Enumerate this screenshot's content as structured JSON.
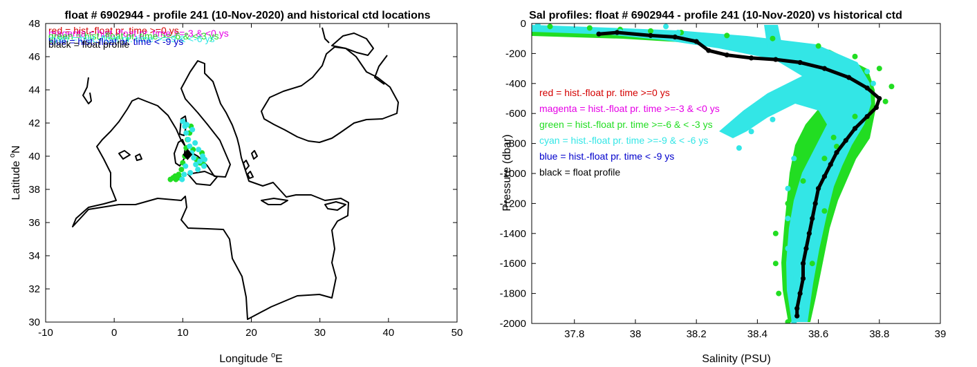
{
  "chart_data": [
    {
      "type": "scatter",
      "title": "float # 6902944 - profile 241 (10-Nov-2020) and historical ctd locations",
      "xlabel_main": "Longitude ",
      "xlabel_sup": "o",
      "xlabel_tail": "E",
      "ylabel_main": "Latitude ",
      "ylabel_sup": "o",
      "ylabel_tail": "N",
      "xlim": [
        -10,
        50
      ],
      "ylim": [
        30,
        48
      ],
      "xticks": [
        -10,
        0,
        10,
        20,
        30,
        40,
        50
      ],
      "yticks": [
        30,
        32,
        34,
        36,
        38,
        40,
        42,
        44,
        46,
        48
      ],
      "xtick_labels": [
        "-10",
        "0",
        "10",
        "20",
        "30",
        "40",
        "50"
      ],
      "ytick_labels": [
        "30",
        "32",
        "34",
        "36",
        "38",
        "40",
        "42",
        "44",
        "46",
        "48"
      ],
      "legend_position": "top-left",
      "legend": [
        {
          "text": "red = hist.-float pr. time >=0 ys",
          "color": "#d40000"
        },
        {
          "text": "magenta = hist.-float pr. time >=-3 & <0 ys",
          "color": "#e600e6"
        },
        {
          "text": "green = hist.-float pr. time >=-6 & <-3 ys",
          "color": "#22dd22"
        },
        {
          "text": "cyan = hist.-float pr. time >=-9 & <-6 ys",
          "color": "#33e6e6"
        },
        {
          "text": "blue = hist.-float pr. time < -9 ys",
          "color": "#0000cc"
        },
        {
          "text": "black = float profile",
          "color": "#000000"
        }
      ],
      "series": [
        {
          "name": "green",
          "color": "#22dd22",
          "points": [
            [
              8.2,
              38.6
            ],
            [
              8.6,
              38.7
            ],
            [
              9.0,
              38.6
            ],
            [
              9.4,
              38.9
            ],
            [
              9.8,
              39.2
            ],
            [
              10.0,
              39.6
            ],
            [
              10.3,
              40.0
            ],
            [
              10.5,
              40.5
            ],
            [
              10.7,
              41.0
            ],
            [
              11.0,
              41.4
            ],
            [
              11.2,
              41.8
            ],
            [
              11.5,
              40.4
            ],
            [
              12.0,
              39.8
            ],
            [
              12.5,
              39.6
            ],
            [
              12.8,
              40.2
            ],
            [
              13.0,
              39.5
            ],
            [
              9.5,
              38.7
            ],
            [
              8.9,
              38.8
            ]
          ]
        },
        {
          "name": "cyan",
          "color": "#33e6e6",
          "points": [
            [
              10.0,
              42.1
            ],
            [
              10.3,
              41.8
            ],
            [
              10.5,
              41.4
            ],
            [
              10.8,
              41.0
            ],
            [
              11.0,
              40.6
            ],
            [
              11.3,
              40.2
            ],
            [
              11.6,
              39.9
            ],
            [
              11.9,
              39.5
            ],
            [
              12.2,
              39.2
            ],
            [
              12.5,
              39.7
            ],
            [
              12.9,
              40.0
            ],
            [
              13.1,
              39.4
            ],
            [
              10.2,
              38.9
            ],
            [
              9.9,
              38.6
            ],
            [
              10.4,
              39.4
            ],
            [
              11.1,
              39.0
            ],
            [
              11.8,
              40.8
            ],
            [
              12.3,
              40.4
            ],
            [
              13.2,
              39.8
            ],
            [
              10.6,
              41.9
            ],
            [
              11.4,
              41.6
            ]
          ]
        }
      ],
      "float_position": [
        10.7,
        40.1
      ],
      "float_color": "#000000"
    },
    {
      "type": "scatter",
      "title": "Sal profiles: float # 6902944 - profile 241 (10-Nov-2020) vs historical ctd",
      "xlabel": "Salinity (PSU)",
      "ylabel": "Pressure (dbar)",
      "xlim": [
        37.66,
        39.0
      ],
      "ylim": [
        -2000,
        0
      ],
      "xticks": [
        37.8,
        38.0,
        38.2,
        38.4,
        38.6,
        38.8,
        39.0
      ],
      "xtick_labels": [
        "37.8",
        "38",
        "38.2",
        "38.4",
        "38.6",
        "38.8",
        "39"
      ],
      "yticks": [
        -2000,
        -1800,
        -1600,
        -1400,
        -1200,
        -1000,
        -800,
        -600,
        -400,
        -200,
        0
      ],
      "ytick_labels": [
        "-2000",
        "-1800",
        "-1600",
        "-1400",
        "-1200",
        "-1000",
        "-800",
        "-600",
        "-400",
        "-200",
        "0"
      ],
      "legend_position": "left",
      "legend": [
        {
          "text": "red = hist.-float pr. time >=0 ys",
          "color": "#d40000"
        },
        {
          "text": "magenta = hist.-float pr. time >=-3 & <0 ys",
          "color": "#e600e6"
        },
        {
          "text": "green = hist.-float pr. time >=-6 & < -3 ys",
          "color": "#22dd22"
        },
        {
          "text": "cyan = hist.-float pr. time >=-9 & < -6 ys",
          "color": "#33e6e6"
        },
        {
          "text": "blue = hist.-float pr. time < -9 ys",
          "color": "#0000cc"
        },
        {
          "text": "black = float profile",
          "color": "#000000"
        }
      ],
      "series": [
        {
          "name": "black",
          "color": "#000000",
          "points": [
            [
              37.88,
              -70
            ],
            [
              37.94,
              -60
            ],
            [
              38.05,
              -80
            ],
            [
              38.13,
              -90
            ],
            [
              38.2,
              -120
            ],
            [
              38.24,
              -180
            ],
            [
              38.3,
              -210
            ],
            [
              38.38,
              -230
            ],
            [
              38.46,
              -240
            ],
            [
              38.54,
              -260
            ],
            [
              38.62,
              -300
            ],
            [
              38.7,
              -360
            ],
            [
              38.76,
              -430
            ],
            [
              38.8,
              -500
            ],
            [
              38.79,
              -560
            ],
            [
              38.76,
              -620
            ],
            [
              38.72,
              -700
            ],
            [
              38.69,
              -780
            ],
            [
              38.66,
              -860
            ],
            [
              38.64,
              -940
            ],
            [
              38.62,
              -1020
            ],
            [
              38.6,
              -1100
            ],
            [
              38.59,
              -1200
            ],
            [
              38.58,
              -1300
            ],
            [
              38.57,
              -1400
            ],
            [
              38.56,
              -1500
            ],
            [
              38.55,
              -1600
            ],
            [
              38.55,
              -1700
            ],
            [
              38.54,
              -1800
            ],
            [
              38.53,
              -1900
            ],
            [
              38.53,
              -1950
            ]
          ]
        },
        {
          "name": "green",
          "color": "#22dd22",
          "points": [
            [
              37.72,
              -20
            ],
            [
              37.85,
              -30
            ],
            [
              37.95,
              -40
            ],
            [
              38.05,
              -50
            ],
            [
              38.15,
              -60
            ],
            [
              38.3,
              -80
            ],
            [
              38.45,
              -100
            ],
            [
              38.6,
              -150
            ],
            [
              38.72,
              -220
            ],
            [
              38.8,
              -300
            ],
            [
              38.84,
              -420
            ],
            [
              38.82,
              -520
            ],
            [
              38.72,
              -620
            ],
            [
              38.65,
              -760
            ],
            [
              38.62,
              -900
            ],
            [
              38.55,
              -1050
            ],
            [
              38.5,
              -1200
            ],
            [
              38.46,
              -1400
            ],
            [
              38.46,
              -1600
            ],
            [
              38.47,
              -1800
            ],
            [
              38.5,
              -1990
            ],
            [
              38.66,
              -820
            ],
            [
              38.62,
              -1250
            ],
            [
              38.58,
              -1600
            ]
          ]
        },
        {
          "name": "cyan",
          "color": "#33e6e6",
          "points": [
            [
              37.68,
              -10
            ],
            [
              37.8,
              -40
            ],
            [
              37.95,
              -55
            ],
            [
              38.1,
              -70
            ],
            [
              38.25,
              -90
            ],
            [
              38.4,
              -120
            ],
            [
              38.55,
              -160
            ],
            [
              38.66,
              -230
            ],
            [
              38.76,
              -320
            ],
            [
              38.78,
              -400
            ],
            [
              38.75,
              -480
            ],
            [
              38.6,
              -560
            ],
            [
              38.45,
              -640
            ],
            [
              38.38,
              -720
            ],
            [
              38.34,
              -830
            ],
            [
              38.52,
              -900
            ],
            [
              38.5,
              -1100
            ],
            [
              38.5,
              -1300
            ],
            [
              38.5,
              -1500
            ],
            [
              38.51,
              -1700
            ],
            [
              38.52,
              -1990
            ],
            [
              38.1,
              -20
            ],
            [
              38.14,
              -60
            ],
            [
              38.62,
              -1000
            ],
            [
              38.6,
              -1400
            ]
          ]
        }
      ]
    }
  ]
}
